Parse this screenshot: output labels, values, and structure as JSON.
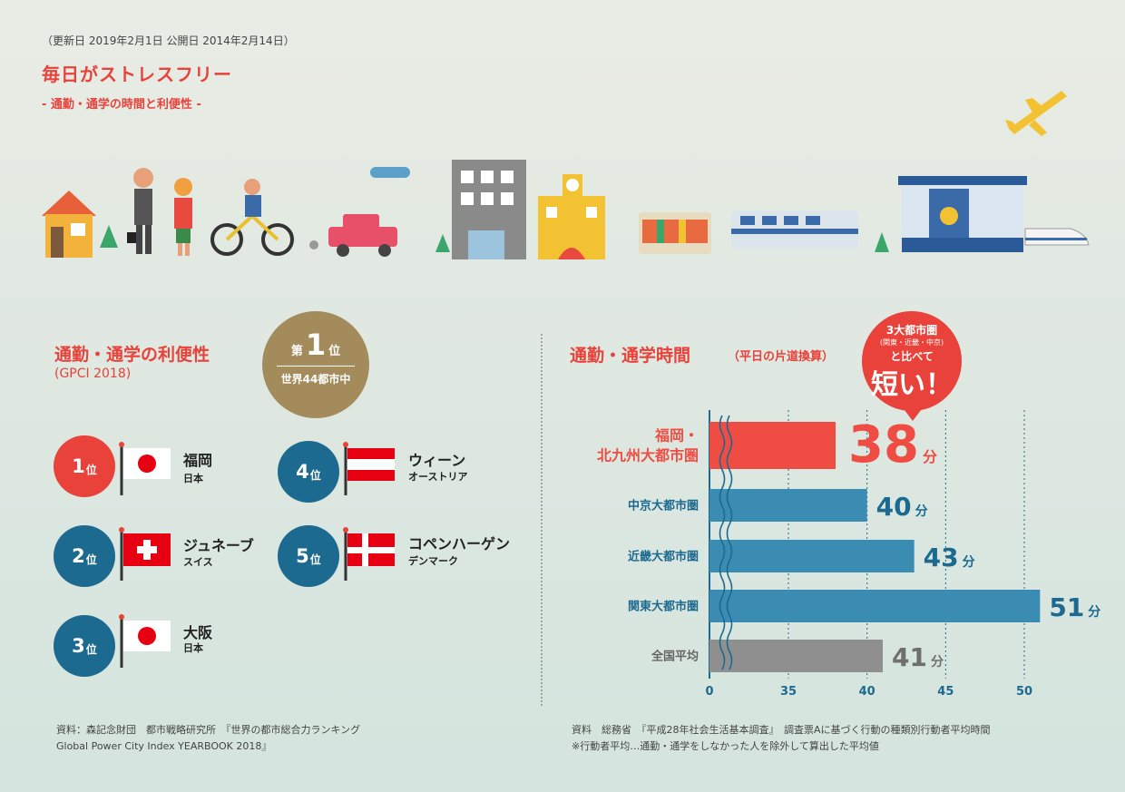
{
  "header": {
    "dates": "（更新日 2019年2月1日 公開日 2014年2月14日）",
    "title": "毎日がストレスフリー",
    "subtitle": "- 通勤・通学の時間と利便性 -"
  },
  "illustration_icons": [
    "house-icon",
    "commuter-icon",
    "cyclist-icon",
    "car-icon",
    "office-building-icon",
    "school-icon",
    "bus-icon",
    "train-icon",
    "station-icon",
    "bullet-train-icon",
    "airplane-icon"
  ],
  "left": {
    "title": "通勤・通学の利便性",
    "subtitle": "(GPCI 2018)",
    "medal": {
      "prefix": "第",
      "number": "1",
      "suffix": "位",
      "note": "世界44都市中"
    },
    "rankings": [
      {
        "rank": "1",
        "unit": "位",
        "city": "福岡",
        "country": "日本",
        "flag": "japan-flag-icon"
      },
      {
        "rank": "2",
        "unit": "位",
        "city": "ジュネーブ",
        "country": "スイス",
        "flag": "switzerland-flag-icon"
      },
      {
        "rank": "3",
        "unit": "位",
        "city": "大阪",
        "country": "日本",
        "flag": "japan-flag-icon"
      },
      {
        "rank": "4",
        "unit": "位",
        "city": "ウィーン",
        "country": "オーストリア",
        "flag": "austria-flag-icon"
      },
      {
        "rank": "5",
        "unit": "位",
        "city": "コペンハーゲン",
        "country": "デンマーク",
        "flag": "denmark-flag-icon"
      }
    ],
    "source_line1": "資料：森記念財団　都市戦略研究所　『世界の都市総合力ランキング",
    "source_line2": "Global Power City Index YEARBOOK 2018』"
  },
  "right": {
    "title": "通勤・通学時間",
    "title_note": "（平日の片道換算）",
    "bubble": {
      "l1": "3大都市圏",
      "l2": "(関東・近畿・中京)",
      "l3": "と比べて",
      "l4": "短い！"
    },
    "source_line1": "資料　総務省　『平成28年社会生活基本調査』　調査票Aに基づく行動の種類別行動者平均時間",
    "source_line2": "※行動者平均…通勤・通学をしなかった人を除外して算出した平均値"
  },
  "chart_data": {
    "type": "bar",
    "orientation": "horizontal",
    "categories": [
      "福岡・北九州大都市圏",
      "中京大都市圏",
      "近畿大都市圏",
      "関東大都市圏",
      "全国平均"
    ],
    "category_lines": [
      [
        "福岡・",
        "北九州大都市圏"
      ],
      [
        "中京大都市圏"
      ],
      [
        "近畿大都市圏"
      ],
      [
        "関東大都市圏"
      ],
      [
        "全国平均"
      ]
    ],
    "values": [
      38,
      40,
      43,
      51,
      41
    ],
    "value_unit": "分",
    "xticks": [
      "0",
      "35",
      "40",
      "45",
      "50"
    ],
    "xlim": [
      30,
      51
    ],
    "axis_break": true,
    "grid": true,
    "colors": {
      "highlight": "#ef4c43",
      "normal": "#3a8cb3",
      "average": "#8f8f8f",
      "axis": "#1c6a8f"
    }
  }
}
